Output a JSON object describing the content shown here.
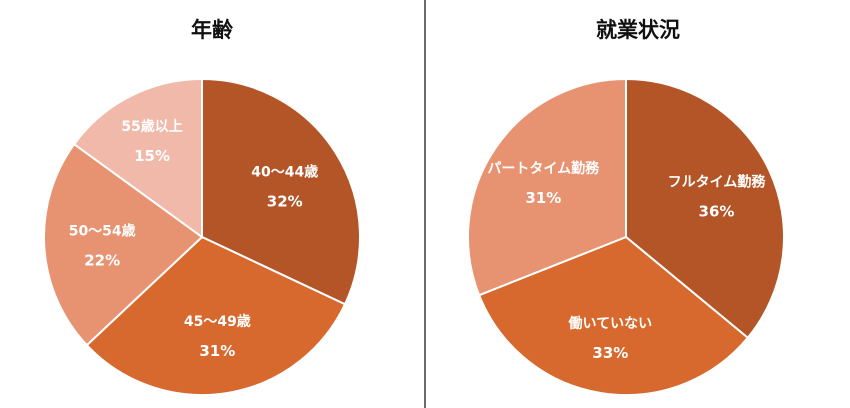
{
  "chart_data": [
    {
      "type": "pie",
      "title": "年齢",
      "categories": [
        "40～44歳",
        "45～49歳",
        "50～54歳",
        "55歳以上"
      ],
      "values": [
        32,
        31,
        22,
        15
      ],
      "value_labels": [
        "32%",
        "31%",
        "22%",
        "15%"
      ],
      "colors": [
        "#b45527",
        "#d7692f",
        "#e79271",
        "#f0b9aa"
      ],
      "start_angle": "12 o'clock",
      "direction": "clockwise"
    },
    {
      "type": "pie",
      "title": "就業状況",
      "categories": [
        "フルタイム勤務",
        "働いていない",
        "パートタイム勤務"
      ],
      "values": [
        36,
        33,
        31
      ],
      "value_labels": [
        "36%",
        "33%",
        "31%"
      ],
      "colors": [
        "#b45527",
        "#d7692f",
        "#e79271"
      ],
      "start_angle": "12 o'clock",
      "direction": "clockwise"
    }
  ]
}
